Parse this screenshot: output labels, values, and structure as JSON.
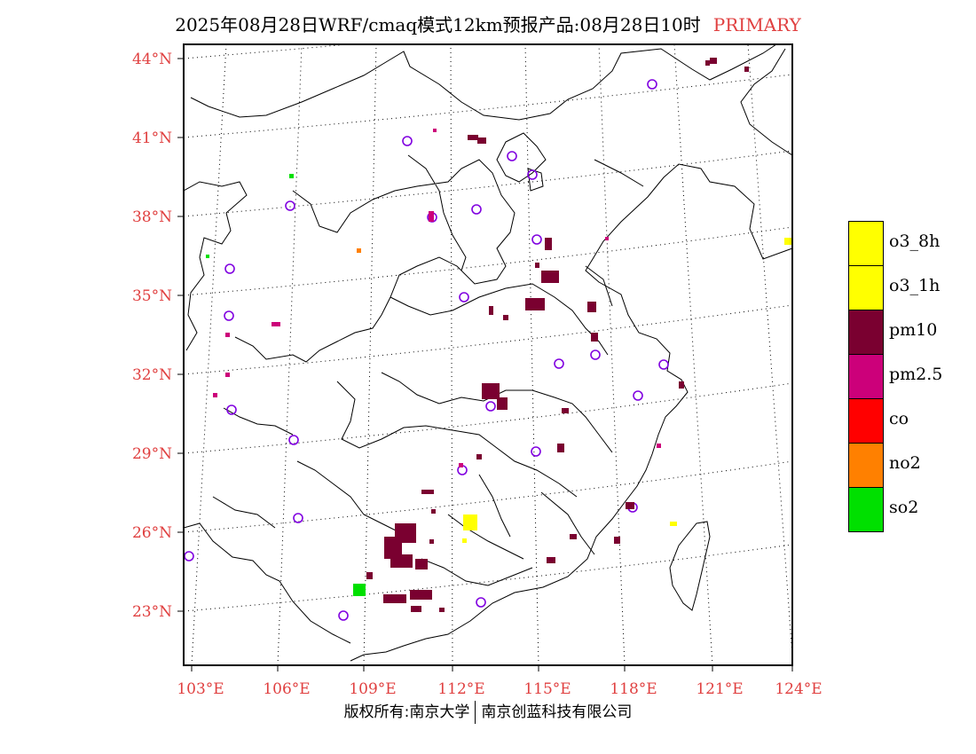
{
  "title": {
    "text": "2025年08月28日WRF/cmaq模式12km预报产品:08月28日10时",
    "tag": "PRIMARY"
  },
  "axes": {
    "lat_labels": [
      "23°N",
      "26°N",
      "29°N",
      "32°N",
      "35°N",
      "38°N",
      "41°N",
      "44°N"
    ],
    "lon_labels": [
      "103°E",
      "106°E",
      "109°E",
      "112°E",
      "115°E",
      "118°E",
      "121°E",
      "124°E"
    ],
    "label_color": "#e04040"
  },
  "legend": [
    {
      "label": "o3_8h",
      "color": "#ffff00"
    },
    {
      "label": "o3_1h",
      "color": "#ffff00"
    },
    {
      "label": "pm10",
      "color": "#7a0030"
    },
    {
      "label": "pm2.5",
      "color": "#cc007a"
    },
    {
      "label": "co",
      "color": "#ff0000"
    },
    {
      "label": "no2",
      "color": "#ff8000"
    },
    {
      "label": "so2",
      "color": "#00e000"
    }
  ],
  "footer": {
    "left": "版权所有:南京大学",
    "right": "南京创蓝科技有限公司"
  }
}
